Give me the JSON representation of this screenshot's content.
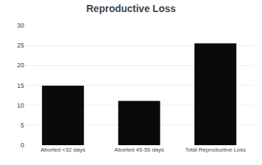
{
  "chart_data": {
    "type": "bar",
    "title": "Reproductive Loss",
    "categories": [
      "Aborted <32 days",
      "Aborted 45-55 days",
      "Total Reproductive Loss"
    ],
    "values": [
      14.9,
      11.1,
      25.5
    ],
    "color": "#0a0a0a",
    "ylim": [
      0,
      30
    ],
    "yticks": [
      0,
      5,
      10,
      15,
      20,
      25,
      30
    ],
    "grid": true
  }
}
